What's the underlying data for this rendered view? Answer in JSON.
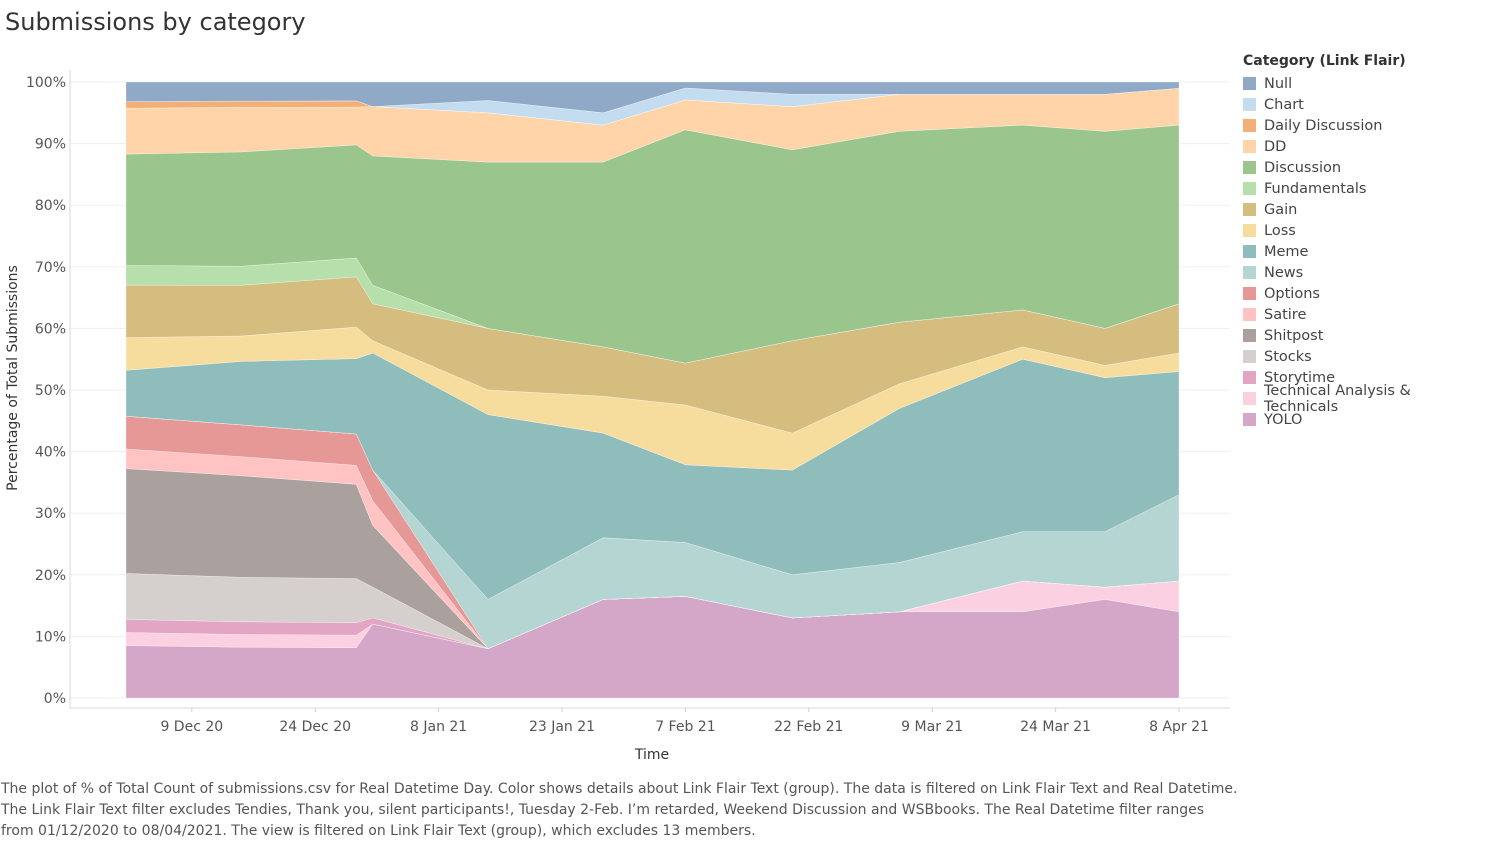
{
  "title": "Submissions by category",
  "caption": "The plot of % of Total Count of submissions.csv for Real Datetime Day.  Color shows details about Link Flair Text (group). The data is filtered on Link Flair Text and Real Datetime. The Link Flair Text filter excludes Tendies, Thank you, silent participants!, Tuesday 2-Feb. I’m retarded, Weekend Discussion and WSBbooks. The Real Datetime filter ranges from 01/12/2020 to 08/04/2021. The view is filtered on Link Flair Text (group), which excludes 13 members.",
  "chart_data": {
    "type": "area",
    "stacked": "percent",
    "xlabel": "Time",
    "ylabel": "Percentage of Total Submissions",
    "ylim": [
      0,
      100
    ],
    "grid": true,
    "legend_placement": "right",
    "legend_title": "Category (Link Flair)",
    "x_ticks": [
      "9 Dec 20",
      "24 Dec 20",
      "8 Jan 21",
      "23 Jan 21",
      "7 Feb 21",
      "22 Feb 21",
      "9 Mar 21",
      "24 Mar 21",
      "8 Apr 21"
    ],
    "y_ticks": [
      "0%",
      "10%",
      "20%",
      "30%",
      "40%",
      "50%",
      "60%",
      "70%",
      "80%",
      "90%",
      "100%"
    ],
    "x": [
      "2020-12-01",
      "2020-12-15",
      "2020-12-29",
      "2020-12-31",
      "2021-01-14",
      "2021-01-28",
      "2021-02-07",
      "2021-02-20",
      "2021-03-05",
      "2021-03-20",
      "2021-03-30",
      "2021-04-08"
    ],
    "series": [
      {
        "name": "YOLO",
        "color": "#d4a6c8",
        "values": [
          8,
          8,
          8,
          12,
          8,
          16,
          17,
          13,
          14,
          14,
          16,
          14
        ]
      },
      {
        "name": "Technical Analysis & Technicals",
        "color": "#fbd0e0",
        "values": [
          2,
          2,
          2,
          0,
          0,
          0,
          0,
          0,
          0,
          5,
          2,
          5
        ]
      },
      {
        "name": "Storytime",
        "color": "#e2a5c3",
        "values": [
          2,
          2,
          2,
          1,
          0,
          0,
          0,
          0,
          0,
          0,
          0,
          0
        ]
      },
      {
        "name": "Stocks",
        "color": "#d5cfcd",
        "values": [
          7,
          7,
          7,
          5,
          0,
          0,
          0,
          0,
          0,
          0,
          0,
          0
        ]
      },
      {
        "name": "Shitpost",
        "color": "#aaa09d",
        "values": [
          16,
          16,
          15,
          10,
          0,
          0,
          0,
          0,
          0,
          0,
          0,
          0
        ]
      },
      {
        "name": "Satire",
        "color": "#ffc3c3",
        "values": [
          3,
          3,
          3,
          4,
          0,
          0,
          0,
          0,
          0,
          0,
          0,
          0
        ]
      },
      {
        "name": "Options",
        "color": "#e69897",
        "values": [
          5,
          5,
          5,
          5,
          0,
          0,
          0,
          0,
          0,
          0,
          0,
          0
        ]
      },
      {
        "name": "News",
        "color": "#b5d5d2",
        "values": [
          0,
          0,
          0,
          0,
          8,
          10,
          9,
          7,
          8,
          8,
          9,
          14
        ]
      },
      {
        "name": "Meme",
        "color": "#8fbdbc",
        "values": [
          7,
          10,
          12,
          19,
          30,
          17,
          13,
          17,
          25,
          28,
          25,
          20
        ]
      },
      {
        "name": "Loss",
        "color": "#f6dd9e",
        "values": [
          5,
          4,
          5,
          2,
          4,
          6,
          10,
          6,
          4,
          2,
          2,
          3
        ]
      },
      {
        "name": "Gain",
        "color": "#d5bd7f",
        "values": [
          8,
          8,
          8,
          6,
          10,
          8,
          7,
          15,
          10,
          6,
          6,
          8
        ]
      },
      {
        "name": "Fundamentals",
        "color": "#b7dfac",
        "values": [
          3,
          3,
          3,
          3,
          0,
          0,
          0,
          0,
          0,
          0,
          0,
          0
        ]
      },
      {
        "name": "Discussion",
        "color": "#9ac58d",
        "values": [
          17,
          18,
          18,
          21,
          27,
          30,
          39,
          31,
          31,
          30,
          32,
          29
        ]
      },
      {
        "name": "DD",
        "color": "#fed4a8",
        "values": [
          7,
          7,
          6,
          8,
          8,
          6,
          5,
          7,
          6,
          5,
          6,
          6
        ]
      },
      {
        "name": "Daily Discussion",
        "color": "#f2b077",
        "values": [
          1,
          1,
          1,
          0,
          0,
          0,
          0,
          0,
          0,
          0,
          0,
          0
        ]
      },
      {
        "name": "Chart",
        "color": "#c3dcf0",
        "values": [
          0,
          0,
          0,
          0,
          2,
          2,
          2,
          2,
          0,
          0,
          0,
          0
        ]
      },
      {
        "name": "Null",
        "color": "#90a9c6",
        "values": [
          3,
          3,
          3,
          4,
          3,
          5,
          1,
          2,
          2,
          2,
          2,
          1
        ]
      }
    ]
  },
  "legend": [
    {
      "label": "Null",
      "color": "#90a9c6"
    },
    {
      "label": "Chart",
      "color": "#c3dcf0"
    },
    {
      "label": "Daily Discussion",
      "color": "#f2b077"
    },
    {
      "label": "DD",
      "color": "#fed4a8"
    },
    {
      "label": "Discussion",
      "color": "#9ac58d"
    },
    {
      "label": "Fundamentals",
      "color": "#b7dfac"
    },
    {
      "label": "Gain",
      "color": "#d5bd7f"
    },
    {
      "label": "Loss",
      "color": "#f6dd9e"
    },
    {
      "label": "Meme",
      "color": "#8fbdbc"
    },
    {
      "label": "News",
      "color": "#b5d5d2"
    },
    {
      "label": "Options",
      "color": "#e69897"
    },
    {
      "label": "Satire",
      "color": "#ffc3c3"
    },
    {
      "label": "Shitpost",
      "color": "#aaa09d"
    },
    {
      "label": "Stocks",
      "color": "#d5cfcd"
    },
    {
      "label": "Storytime",
      "color": "#e2a5c3"
    },
    {
      "label": "Technical Analysis & Technicals",
      "color": "#fbd0e0"
    },
    {
      "label": "YOLO",
      "color": "#d4a6c8"
    }
  ]
}
